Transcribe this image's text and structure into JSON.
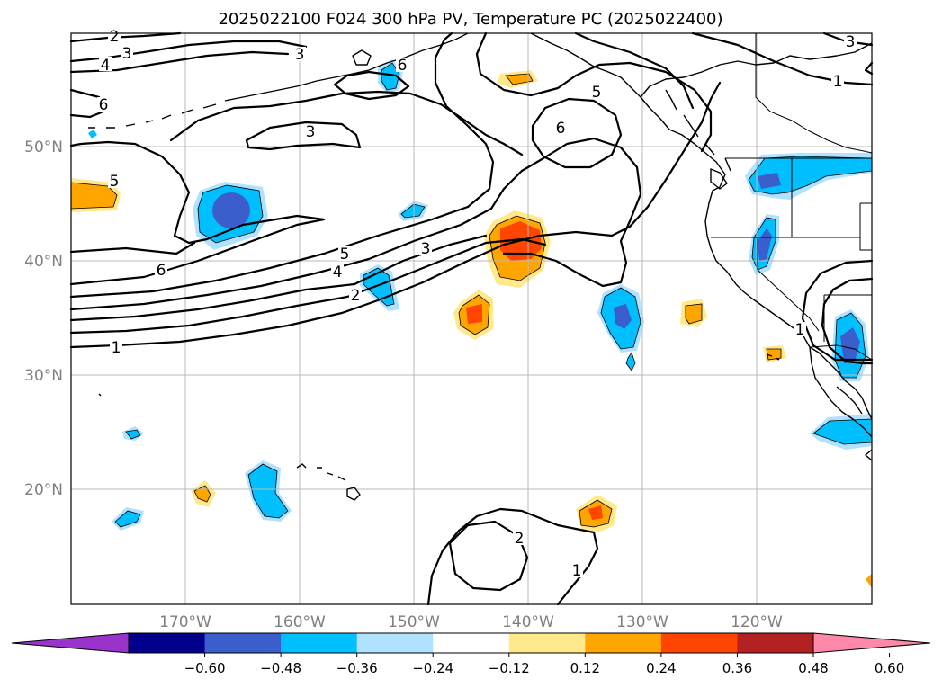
{
  "title": "2025022100 F024 300 hPa PV, Temperature PC (2025022400)",
  "map": {
    "lon_range": [
      -180,
      -110
    ],
    "lat_range": [
      10,
      60
    ],
    "lon_ticks": [
      "170°W",
      "160°W",
      "150°W",
      "140°W",
      "130°W",
      "120°W"
    ],
    "lat_ticks": [
      "50°N",
      "40°N",
      "30°N",
      "20°N"
    ],
    "gridlines": true
  },
  "pv_contour_labels": [
    "2",
    "3",
    "4",
    "6",
    "6",
    "3",
    "5",
    "6",
    "3",
    "1",
    "3",
    "5",
    "6",
    "5",
    "4",
    "2",
    "3",
    "1",
    "1",
    "2",
    "1"
  ],
  "colorbar": {
    "ticks": [
      "−0.60",
      "−0.48",
      "−0.36",
      "−0.24",
      "−0.12",
      "0.12",
      "0.24",
      "0.36",
      "0.48",
      "0.60"
    ],
    "colors": [
      "#9933cc",
      "#00008b",
      "#3a5fcd",
      "#00bfff",
      "#b0e2ff",
      "#ffffff",
      "#ffe98a",
      "#ffa500",
      "#ff4500",
      "#b22222",
      "#ff88aa"
    ],
    "extend": "both"
  }
}
